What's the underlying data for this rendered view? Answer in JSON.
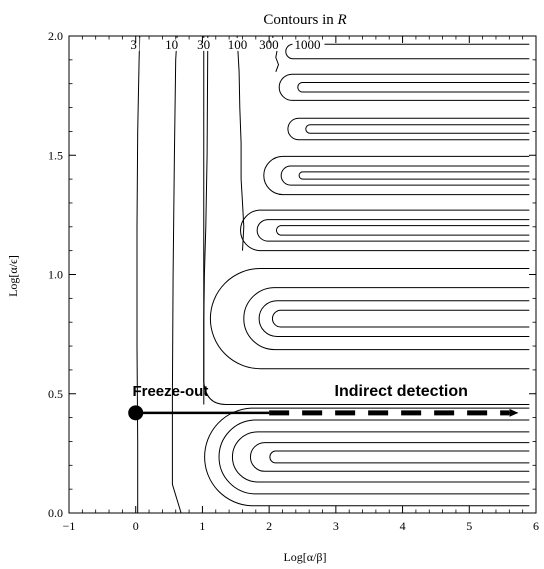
{
  "chart_data": {
    "type": "contour",
    "title_prefix": "Contours in ",
    "title_var": "R",
    "xlabel": "Log[α/β]",
    "ylabel": "Log[α/ϵ]",
    "xlim": [
      -1,
      6
    ],
    "ylim": [
      0,
      2
    ],
    "x_ticks": [
      -1,
      0,
      1,
      2,
      3,
      4,
      5,
      6
    ],
    "x_tick_labels": [
      "−1",
      "0",
      "1",
      "2",
      "3",
      "4",
      "5",
      "6"
    ],
    "y_ticks": [
      0.0,
      0.5,
      1.0,
      1.5,
      2.0
    ],
    "y_tick_labels": [
      "0.0",
      "0.5",
      "1.0",
      "1.5",
      "2.0"
    ],
    "grid": false,
    "contour_levels": [
      {
        "label": "3",
        "label_x": -0.08
      },
      {
        "label": "10",
        "label_x": 0.44
      },
      {
        "label": "30",
        "label_x": 0.92
      },
      {
        "label": "100",
        "label_x": 1.38
      },
      {
        "label": "300",
        "label_x": 1.85
      },
      {
        "label": "1000",
        "label_x": 2.38
      }
    ],
    "contour_label_y": 1.95,
    "vertical_contours": [
      [
        [
          0.03,
          0.0
        ],
        [
          0.03,
          0.3
        ],
        [
          0.02,
          0.7
        ],
        [
          0.02,
          1.2
        ],
        [
          0.03,
          1.6
        ],
        [
          0.05,
          1.9
        ],
        [
          0.06,
          2.0
        ]
      ],
      [
        [
          0.68,
          0.0
        ],
        [
          0.55,
          0.12
        ],
        [
          0.55,
          0.5
        ],
        [
          0.56,
          1.0
        ],
        [
          0.58,
          1.5
        ],
        [
          0.6,
          1.9
        ],
        [
          0.62,
          2.0
        ]
      ]
    ],
    "band_contours": [
      {
        "y_center": 0.235,
        "half_widths": [
          0.205,
          0.155,
          0.105,
          0.06,
          0.025
        ],
        "left_x": [
          1.0,
          1.22,
          1.45,
          1.72,
          2.0
        ]
      },
      {
        "y_center": 0.815,
        "half_widths": [
          0.21,
          0.13,
          0.075,
          0.035
        ],
        "left_x": [
          1.12,
          1.62,
          1.85,
          2.05
        ]
      },
      {
        "y_center": 1.185,
        "half_widths": [
          0.085,
          0.045,
          0.02
        ],
        "left_x": [
          1.55,
          1.82,
          2.1
        ]
      },
      {
        "y_center": 1.415,
        "half_widths": [
          0.08,
          0.04,
          0.015
        ],
        "left_x": [
          1.92,
          2.18,
          2.45
        ]
      },
      {
        "y_center": 1.61,
        "half_widths": [
          0.045,
          0.018
        ],
        "left_x": [
          2.28,
          2.55
        ]
      },
      {
        "y_center": 1.785,
        "half_widths": [
          0.055,
          0.02
        ],
        "left_x": [
          2.15,
          2.42
        ]
      },
      {
        "y_center": 1.935,
        "half_widths": [
          0.03
        ],
        "left_x": [
          2.25
        ]
      }
    ],
    "wavy_contours": [
      [
        [
          1.02,
          0.455
        ],
        [
          1.02,
          0.6
        ],
        [
          1.02,
          0.8
        ],
        [
          1.03,
          1.0
        ],
        [
          1.05,
          1.2
        ],
        [
          1.07,
          1.5
        ],
        [
          1.08,
          2.0
        ]
      ],
      [
        [
          1.6,
          1.1
        ],
        [
          1.62,
          1.2
        ],
        [
          1.6,
          1.3
        ],
        [
          1.58,
          1.4
        ],
        [
          1.58,
          1.55
        ],
        [
          1.56,
          1.7
        ],
        [
          1.55,
          1.85
        ],
        [
          1.52,
          2.0
        ]
      ],
      [
        [
          2.1,
          1.85
        ],
        [
          2.14,
          1.88
        ],
        [
          2.1,
          1.91
        ],
        [
          2.12,
          1.94
        ],
        [
          2.08,
          1.97
        ],
        [
          2.05,
          2.0
        ]
      ]
    ],
    "annotations": {
      "freeze_out_label": "Freeze-out",
      "indirect_label": "Indirect detection",
      "point": [
        0.0,
        0.42
      ],
      "arrow_solid_from": [
        0.0,
        0.42
      ],
      "arrow_solid_to": [
        2.0,
        0.42
      ],
      "arrow_dashed_from": [
        2.0,
        0.42
      ],
      "arrow_dashed_to": [
        5.72,
        0.42
      ]
    }
  }
}
